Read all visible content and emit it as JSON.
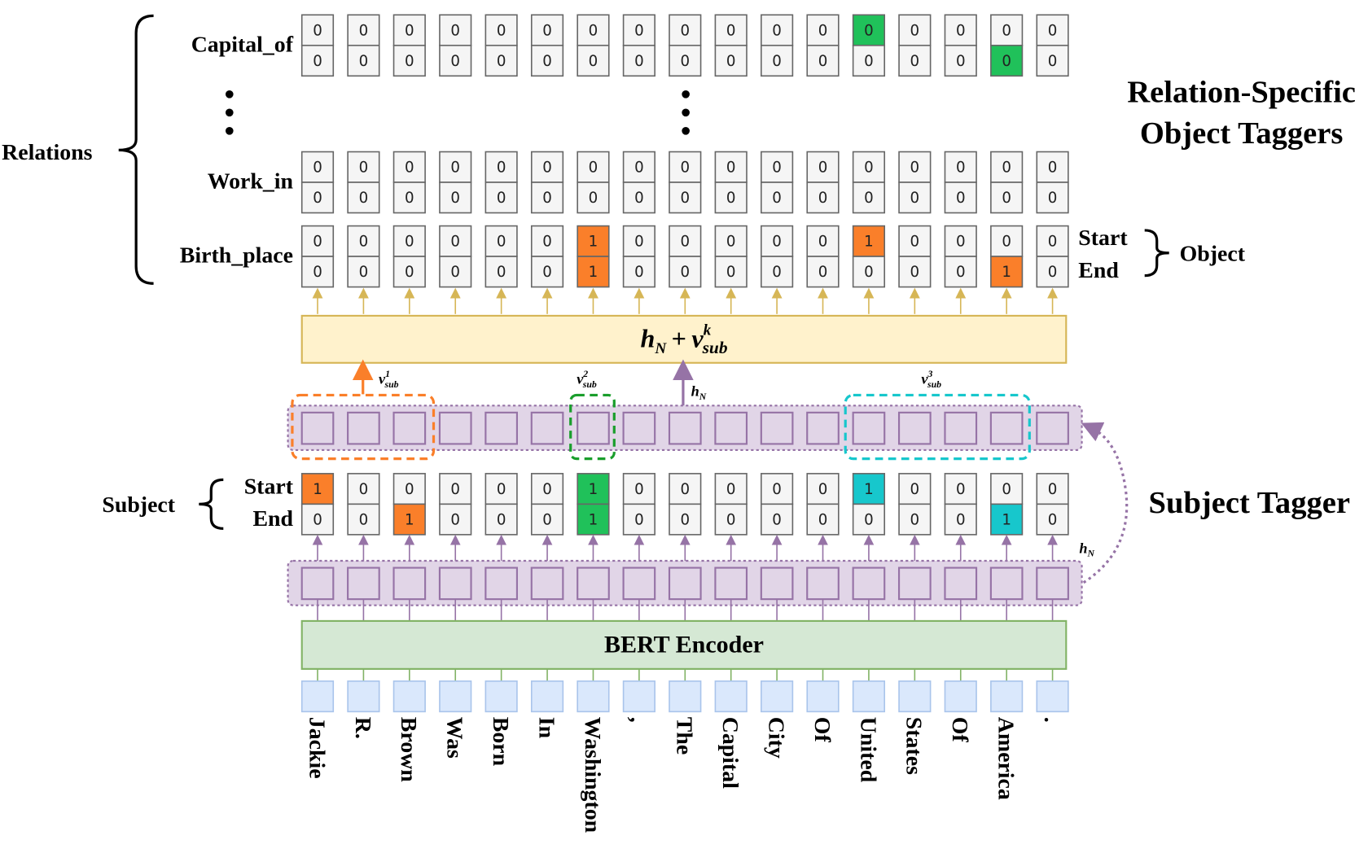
{
  "labels": {
    "relations": "Relations",
    "ellipsis_label": "⋮",
    "object_taggers_title_line1": "Relation-Specific",
    "object_taggers_title_line2": "Object Taggers",
    "object_start": "Start",
    "object_end": "End",
    "object": "Object",
    "subject": "Subject",
    "subject_start": "Start",
    "subject_end": "End",
    "subject_tagger": "Subject Tagger",
    "bert_encoder": "BERT Encoder",
    "fusion_h": "h",
    "fusion_h_sub": "N",
    "fusion_plus": "+",
    "fusion_v": "v",
    "fusion_v_sup": "k",
    "fusion_v_sub": "sub",
    "v1_sup": "1",
    "v2_sup": "2",
    "v3_sup": "3",
    "v_sub": "sub",
    "v": "v",
    "hN_h": "h",
    "hN_N": "N"
  },
  "colors": {
    "orange": "#fa7f2a",
    "green": "#20c15a",
    "cyan": "#17c7cc",
    "cell_bg": "#f5f5f5",
    "purple_bg": "#e1d5e7",
    "purple": "#9673a6",
    "yellow_bg": "#fff2cc",
    "yellow_border": "#d6b656",
    "bert_bg": "#d5e8d4",
    "bert_border": "#82b366",
    "token_bg": "#dae8fc",
    "token_border": "#a9c4eb",
    "dashed_green": "#1a9e2c"
  },
  "tokens": [
    "Jackie",
    "R.",
    "Brown",
    "Was",
    "Born",
    "In",
    "Washington",
    ",",
    "The",
    "Capital",
    "City",
    "Of",
    "United",
    "States",
    "Of",
    "America",
    "."
  ],
  "relations": [
    {
      "name": "Capital_of",
      "start": [
        0,
        0,
        0,
        0,
        0,
        0,
        0,
        0,
        0,
        0,
        0,
        0,
        0,
        0,
        0,
        0,
        0
      ],
      "end": [
        0,
        0,
        0,
        0,
        0,
        0,
        0,
        0,
        0,
        0,
        0,
        0,
        0,
        0,
        0,
        0,
        0
      ],
      "start_hl": [
        "",
        "",
        "",
        "",
        "",
        "",
        "",
        "",
        "",
        "",
        "",
        "",
        "green",
        "",
        "",
        "",
        ""
      ],
      "end_hl": [
        "",
        "",
        "",
        "",
        "",
        "",
        "",
        "",
        "",
        "",
        "",
        "",
        "",
        "",
        "",
        "green",
        ""
      ]
    },
    {
      "name": "Work_in",
      "start": [
        0,
        0,
        0,
        0,
        0,
        0,
        0,
        0,
        0,
        0,
        0,
        0,
        0,
        0,
        0,
        0,
        0
      ],
      "end": [
        0,
        0,
        0,
        0,
        0,
        0,
        0,
        0,
        0,
        0,
        0,
        0,
        0,
        0,
        0,
        0,
        0
      ],
      "start_hl": [
        "",
        "",
        "",
        "",
        "",
        "",
        "",
        "",
        "",
        "",
        "",
        "",
        "",
        "",
        "",
        "",
        ""
      ],
      "end_hl": [
        "",
        "",
        "",
        "",
        "",
        "",
        "",
        "",
        "",
        "",
        "",
        "",
        "",
        "",
        "",
        "",
        ""
      ]
    },
    {
      "name": "Birth_place",
      "start": [
        0,
        0,
        0,
        0,
        0,
        0,
        1,
        0,
        0,
        0,
        0,
        0,
        1,
        0,
        0,
        0,
        0
      ],
      "end": [
        0,
        0,
        0,
        0,
        0,
        0,
        1,
        0,
        0,
        0,
        0,
        0,
        0,
        0,
        0,
        1,
        0
      ],
      "start_hl": [
        "",
        "",
        "",
        "",
        "",
        "",
        "orange",
        "",
        "",
        "",
        "",
        "",
        "orange",
        "",
        "",
        "",
        ""
      ],
      "end_hl": [
        "",
        "",
        "",
        "",
        "",
        "",
        "orange",
        "",
        "",
        "",
        "",
        "",
        "",
        "",
        "",
        "orange",
        ""
      ]
    }
  ],
  "subject": {
    "start": [
      1,
      0,
      0,
      0,
      0,
      0,
      1,
      0,
      0,
      0,
      0,
      0,
      1,
      0,
      0,
      0,
      0
    ],
    "end": [
      0,
      0,
      1,
      0,
      0,
      0,
      1,
      0,
      0,
      0,
      0,
      0,
      0,
      0,
      0,
      1,
      0
    ],
    "start_hl": [
      "orange",
      "",
      "",
      "",
      "",
      "",
      "green",
      "",
      "",
      "",
      "",
      "",
      "cyan",
      "",
      "",
      "",
      ""
    ],
    "end_hl": [
      "",
      "",
      "orange",
      "",
      "",
      "",
      "green",
      "",
      "",
      "",
      "",
      "",
      "",
      "",
      "",
      "cyan",
      ""
    ]
  }
}
